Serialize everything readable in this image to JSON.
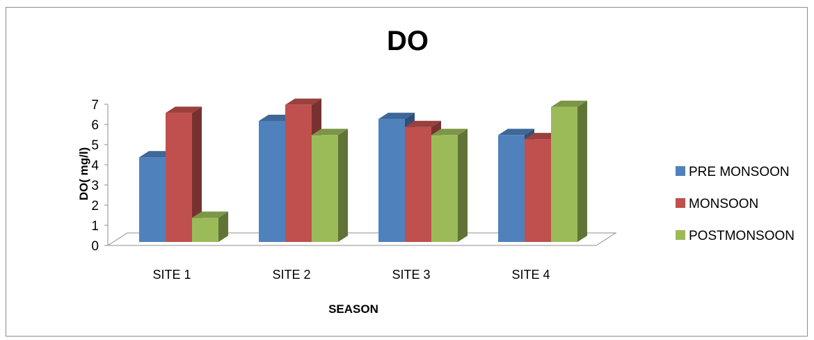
{
  "chart_data": {
    "type": "bar",
    "title": "DO",
    "xlabel": "SEASON",
    "ylabel": "DO( mg/l)",
    "categories": [
      "SITE 1",
      "SITE 2",
      "SITE 3",
      "SITE 4"
    ],
    "ylim": [
      0,
      7
    ],
    "yticks": [
      "0",
      "1",
      "2",
      "3",
      "4",
      "5",
      "6",
      "7"
    ],
    "grid": false,
    "legend_position": "right",
    "series": [
      {
        "name": "PRE MONSOON",
        "values": [
          4.2,
          6.0,
          6.1,
          5.3
        ],
        "color": "#4F81BD"
      },
      {
        "name": "MONSOON",
        "values": [
          6.4,
          6.8,
          5.7,
          5.1
        ],
        "color": "#C0504D"
      },
      {
        "name": "POSTMONSOON",
        "values": [
          1.2,
          5.3,
          5.3,
          6.7
        ],
        "color": "#9BBB59"
      }
    ]
  }
}
